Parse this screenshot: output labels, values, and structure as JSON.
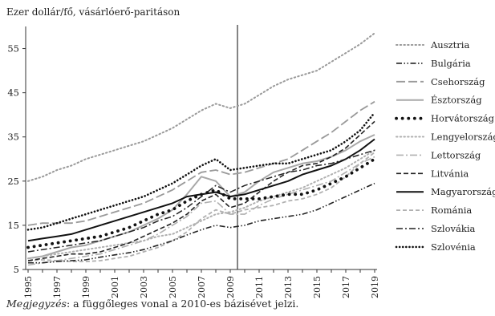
{
  "chart_data": {
    "type": "line",
    "title": "",
    "ylabel": "Ezer dollár/fő, vásárlóerő-paritáson",
    "xlabel": "",
    "ylim": [
      5,
      60
    ],
    "yticks": [
      5,
      15,
      25,
      35,
      45,
      55
    ],
    "x": [
      1995,
      1996,
      1997,
      1998,
      1999,
      2000,
      2001,
      2002,
      2003,
      2004,
      2005,
      2006,
      2007,
      2008,
      2009,
      2010,
      2011,
      2012,
      2013,
      2014,
      2015,
      2016,
      2017,
      2018,
      2019
    ],
    "xtick_labels": [
      "1995",
      "1997",
      "1999",
      "2001",
      "2003",
      "2005",
      "2007",
      "2009",
      "2011",
      "2013",
      "2015",
      "2017",
      "2019"
    ],
    "vertical_line_x": 2009.5,
    "grid": false,
    "legend_position": "right",
    "series": [
      {
        "name": "Ausztria",
        "style": "dotted-light",
        "color": "#9a9a9a",
        "values": [
          25,
          26,
          27.5,
          28.5,
          30,
          31,
          32,
          33,
          34,
          35.5,
          37,
          39,
          41,
          42.5,
          41.5,
          42.5,
          44.5,
          46.5,
          48,
          49,
          50,
          52,
          54,
          56,
          58.5
        ]
      },
      {
        "name": "Bulgária",
        "style": "dashdotdot",
        "color": "#222222",
        "values": [
          6.5,
          6.5,
          6.8,
          7,
          7.2,
          7.8,
          8.3,
          8.8,
          9.5,
          10.5,
          11.5,
          12.8,
          14,
          15,
          14.5,
          15,
          16,
          16.5,
          17,
          17.5,
          18.5,
          20,
          21.5,
          23,
          24.5
        ]
      },
      {
        "name": "Csehország",
        "style": "longdash-light",
        "color": "#9a9a9a",
        "values": [
          15,
          15.5,
          15.5,
          15.5,
          16,
          17,
          18,
          19,
          20,
          21.5,
          23,
          25,
          27,
          27.5,
          26.5,
          27,
          28,
          29,
          30,
          32,
          34,
          36,
          38.5,
          41,
          43
        ]
      },
      {
        "name": "Észtország",
        "style": "solid-light",
        "color": "#a8a8a8",
        "values": [
          7.5,
          8,
          9,
          10,
          10.5,
          11.5,
          12.5,
          13.5,
          15,
          16.5,
          18.5,
          22,
          26,
          25,
          21.5,
          22.5,
          25,
          27,
          28,
          29,
          29.5,
          30.5,
          32,
          34,
          35.5
        ]
      },
      {
        "name": "Horvátország",
        "style": "bigdot",
        "color": "#111111",
        "values": [
          10,
          10.5,
          11,
          11.5,
          12,
          12.5,
          13.5,
          14.5,
          16,
          17.5,
          18.5,
          20.5,
          22,
          23,
          21,
          21,
          21,
          21.5,
          22,
          22,
          23,
          24.5,
          26,
          28,
          30
        ]
      },
      {
        "name": "Lengyelország",
        "style": "dotted-light",
        "color": "#b0b0b0",
        "values": [
          7.5,
          8,
          8.5,
          9,
          9.5,
          10,
          10.5,
          11,
          11.5,
          12.5,
          13,
          14.5,
          16,
          17.5,
          18,
          19,
          20.5,
          21.5,
          22.5,
          23.5,
          25,
          26.5,
          28,
          30,
          32
        ]
      },
      {
        "name": "Lettország",
        "style": "dashdot-light",
        "color": "#b0b0b0",
        "values": [
          6,
          6.5,
          7,
          7.5,
          8,
          8.5,
          9.5,
          10.5,
          11.5,
          13,
          15,
          17,
          20,
          20.5,
          17.5,
          17.5,
          19.5,
          21,
          22,
          23,
          24,
          25,
          27,
          29,
          30.5
        ]
      },
      {
        "name": "Litvánia",
        "style": "dashed",
        "color": "#222222",
        "values": [
          7,
          7.5,
          8,
          8.5,
          8.5,
          9,
          10,
          11,
          12.5,
          14,
          15.5,
          17.5,
          20.5,
          22,
          19,
          20,
          22.5,
          25,
          27,
          28.5,
          29,
          30.5,
          32.5,
          35.5,
          38.5
        ]
      },
      {
        "name": "Magyarország",
        "style": "solid",
        "color": "#111111",
        "values": [
          11.5,
          12,
          12.5,
          13,
          14,
          15,
          16,
          17,
          18,
          19,
          20,
          21.5,
          22,
          22.5,
          21.5,
          22,
          23,
          24,
          25,
          26.5,
          27.5,
          28.5,
          30,
          32,
          34.5
        ]
      },
      {
        "name": "Románia",
        "style": "dashed-light",
        "color": "#b0b0b0",
        "values": [
          7,
          7.2,
          7,
          6.8,
          6.8,
          7,
          7.5,
          8,
          9,
          10,
          11.5,
          13.5,
          16.5,
          18.5,
          17.5,
          18.5,
          19,
          19.5,
          20.5,
          21,
          22,
          23.5,
          26,
          29,
          31.5
        ]
      },
      {
        "name": "Szlovákia",
        "style": "dashdot",
        "color": "#222222",
        "values": [
          9,
          9.5,
          10,
          10.5,
          11,
          11.5,
          12.5,
          13.5,
          14.5,
          16,
          17,
          19,
          21.5,
          24,
          22.5,
          24,
          25,
          26,
          27,
          27.5,
          28.5,
          29,
          30,
          31,
          32
        ]
      },
      {
        "name": "Szlovénia",
        "style": "dotted",
        "color": "#111111",
        "values": [
          14,
          14.5,
          15.5,
          16.5,
          17.5,
          18.5,
          19.5,
          20.5,
          21.5,
          23,
          24.5,
          26.5,
          28.5,
          30,
          27.5,
          28,
          28.5,
          29,
          29,
          30,
          31,
          32,
          34,
          36.5,
          40.5
        ]
      }
    ]
  },
  "note": {
    "label": "Megjegyzés",
    "text": ": a függőleges vonal a 2010-es bázisévet jelzi."
  }
}
